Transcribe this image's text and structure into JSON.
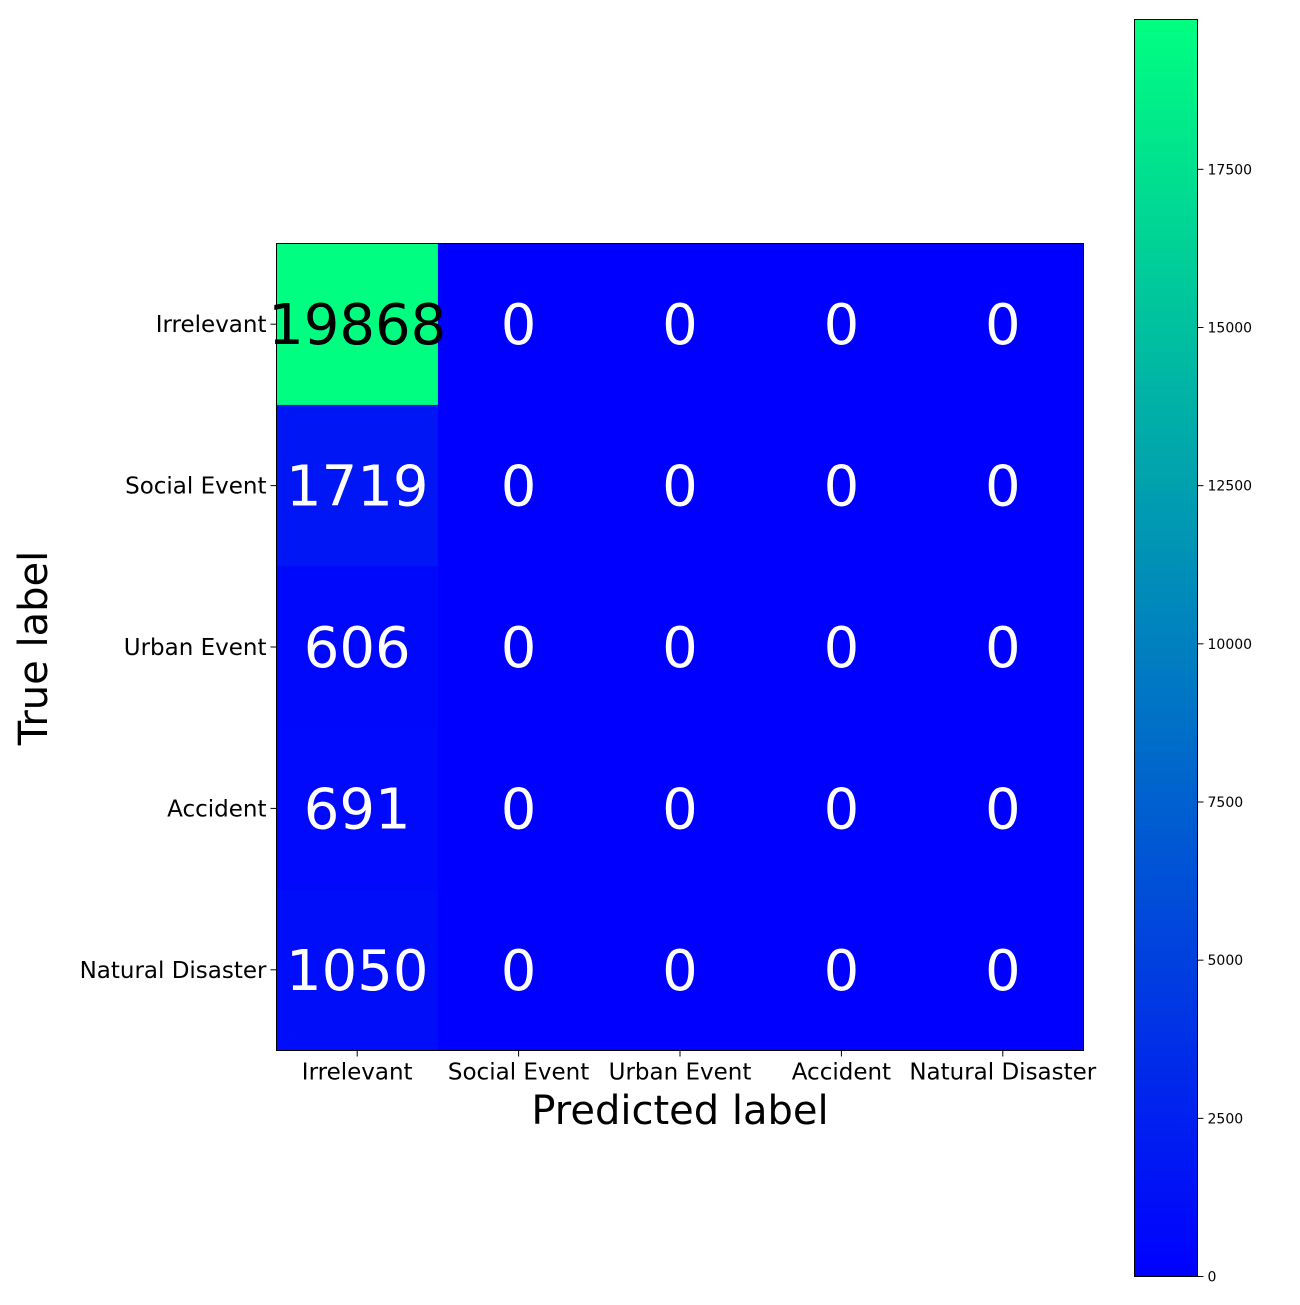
{
  "chart_data": {
    "type": "heatmap",
    "title": "",
    "xlabel": "Predicted label",
    "ylabel": "True label",
    "x_categories": [
      "Irrelevant",
      "Social Event",
      "Urban Event",
      "Accident",
      "Natural Disaster"
    ],
    "y_categories": [
      "Irrelevant",
      "Social Event",
      "Urban Event",
      "Accident",
      "Natural Disaster"
    ],
    "matrix": [
      [
        19868,
        0,
        0,
        0,
        0
      ],
      [
        1719,
        0,
        0,
        0,
        0
      ],
      [
        606,
        0,
        0,
        0,
        0
      ],
      [
        691,
        0,
        0,
        0,
        0
      ],
      [
        1050,
        0,
        0,
        0,
        0
      ]
    ],
    "colormap": [
      "#0000ff",
      "#00ff80"
    ],
    "vmin": 0,
    "vmax": 19868,
    "colorbar_ticks": [
      0,
      2500,
      5000,
      7500,
      10000,
      12500,
      15000,
      17500
    ],
    "colorbar_tick_labels": [
      "0",
      "2500",
      "5000",
      "7500",
      "10000",
      "12500",
      "15000",
      "17500"
    ],
    "annotation_text_colors": {
      "dark": "#000000",
      "light": "#ffffff"
    }
  }
}
